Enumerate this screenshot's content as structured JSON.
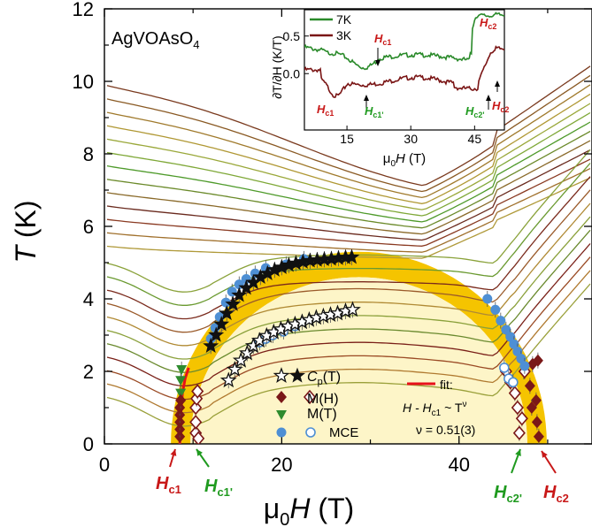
{
  "chart_data": {
    "type": "scatter",
    "title": "",
    "compound": {
      "base": "AgVOAsO",
      "sub": "4"
    },
    "xlabel": {
      "prefix": "μ",
      "sub": "0",
      "var": "H",
      "unit": " (T)"
    },
    "ylabel": {
      "var": "T",
      "unit": " (K)"
    },
    "xlim": [
      0,
      55
    ],
    "ylim": [
      0,
      12
    ],
    "xticks": [
      "0",
      "20",
      "40"
    ],
    "yticks": [
      "0",
      "2",
      "4",
      "6",
      "8",
      "10",
      "12"
    ],
    "legend": {
      "cp": {
        "label": "C",
        "sub": "p",
        "arg": "(T)"
      },
      "mh": {
        "label": "M(H)"
      },
      "mt": {
        "label": "M(T)"
      },
      "mce": {
        "label": "MCE"
      },
      "fit": {
        "label": "fit:",
        "eq_a": "H - H",
        "eq_sub": "c1",
        "eq_b": " ~ T",
        "eq_sup": "ν",
        "nu": "ν = 0.51(3)"
      }
    },
    "field_labels": {
      "hc1": {
        "base": "H",
        "sub": "c1"
      },
      "hc1p": {
        "base": "H",
        "sub": "c1'"
      },
      "hc2p": {
        "base": "H",
        "sub": "c2'"
      },
      "hc2": {
        "base": "H",
        "sub": "c2"
      }
    },
    "colors": {
      "dome": "#f5c400",
      "inner": "#fdf5c8",
      "fit": "#e8101a",
      "cp": "#111111",
      "mh": "#7a1818",
      "mt": "#2e8b2e",
      "mce": "#4e8fd4",
      "green": "#1f9a1f",
      "red": "#c81818"
    },
    "series": [
      {
        "name": "Cp(T) filled",
        "marker": "star-filled",
        "x": [
          12.0,
          12.6,
          13.2,
          13.8,
          14.5,
          15.2,
          16.0,
          16.8,
          17.6,
          18.4,
          19.2,
          20.0,
          20.8,
          21.6,
          22.4,
          23.2,
          24.0,
          24.8,
          25.6,
          26.4,
          27.2,
          27.9
        ],
        "y": [
          2.7,
          3.0,
          3.3,
          3.6,
          3.85,
          4.1,
          4.3,
          4.45,
          4.6,
          4.7,
          4.8,
          4.87,
          4.93,
          4.98,
          5.02,
          5.05,
          5.07,
          5.09,
          5.1,
          5.12,
          5.14,
          5.15
        ]
      },
      {
        "name": "Cp(T) open",
        "marker": "star-open",
        "x": [
          14.0,
          14.7,
          15.4,
          16.1,
          16.8,
          17.5,
          18.3,
          19.1,
          19.9,
          20.7,
          21.5,
          22.3,
          23.1,
          23.9,
          24.7,
          25.5,
          26.3,
          27.2,
          28.0
        ],
        "y": [
          1.75,
          2.05,
          2.3,
          2.5,
          2.7,
          2.85,
          2.98,
          3.08,
          3.16,
          3.24,
          3.3,
          3.36,
          3.42,
          3.48,
          3.52,
          3.56,
          3.6,
          3.66,
          3.7
        ]
      },
      {
        "name": "M(H) filled",
        "marker": "diamond-filled",
        "x": [
          8.5,
          8.5,
          8.5,
          8.5,
          8.5,
          8.6,
          47.3,
          48.0,
          48.7,
          48.2,
          48.8,
          49.0,
          48.3,
          48.9
        ],
        "y": [
          0.2,
          0.4,
          0.6,
          0.8,
          1.0,
          1.2,
          2.0,
          1.6,
          1.2,
          1.0,
          0.6,
          0.2,
          2.2,
          2.3
        ]
      },
      {
        "name": "M(H) open",
        "marker": "diamond-open",
        "x": [
          10.3,
          10.3,
          10.3,
          10.4,
          10.5,
          10.6,
          45.3,
          45.8,
          46.3,
          46.6,
          47.1,
          46.8,
          47.4
        ],
        "y": [
          0.3,
          0.6,
          1.0,
          1.25,
          1.45,
          0.15,
          2.0,
          1.7,
          1.4,
          1.0,
          0.7,
          0.3,
          2.0
        ]
      },
      {
        "name": "M(T)",
        "marker": "triangle-down",
        "x": [
          8.6,
          8.6,
          8.7
        ],
        "y": [
          1.4,
          1.75,
          2.05
        ]
      },
      {
        "name": "MCE filled",
        "marker": "circle-filled",
        "x": [
          12.0,
          12.5,
          13.0,
          13.7,
          14.4,
          15.2,
          16.0,
          17.0,
          18.2,
          20.5,
          22.5,
          43.2,
          44.1,
          44.7,
          45.3,
          45.8,
          46.2,
          46.6,
          47.0,
          47.4
        ],
        "y": [
          2.9,
          3.2,
          3.5,
          3.9,
          4.2,
          4.4,
          4.55,
          4.7,
          4.85,
          4.95,
          5.1,
          4.0,
          3.7,
          3.4,
          3.15,
          2.95,
          2.75,
          2.55,
          2.35,
          2.15
        ]
      },
      {
        "name": "MCE open",
        "marker": "circle-open",
        "x": [
          17.5,
          18.2,
          19.0,
          20.2,
          21.5,
          45.1,
          45.6,
          46.1
        ],
        "y": [
          2.8,
          2.9,
          3.0,
          3.1,
          3.25,
          2.1,
          1.8,
          1.7
        ]
      }
    ],
    "fit_curve": {
      "x": [
        8.5,
        8.6,
        8.8,
        9.1,
        9.5
      ],
      "y": [
        0.0,
        0.8,
        1.4,
        1.8,
        2.1
      ]
    },
    "inset": {
      "xlabel": {
        "prefix": "μ",
        "sub": "0",
        "var": "H",
        "unit": " (T)"
      },
      "ylabel": "∂T/∂H (K/T)",
      "xlim": [
        5,
        52
      ],
      "ylim": [
        -0.75,
        0.85
      ],
      "xticks": [
        "15",
        "30",
        "45"
      ],
      "yticks": [
        "0.0",
        "0.5"
      ],
      "series": [
        {
          "name": "7K",
          "color": "#2a8a2a"
        },
        {
          "name": "3K",
          "color": "#7a1515"
        }
      ],
      "labels": {
        "hc1": {
          "base": "H",
          "sub": "c1"
        },
        "hc1p": {
          "base": "H",
          "sub": "c1'"
        },
        "hc2p": {
          "base": "H",
          "sub": "c2'"
        },
        "hc2": {
          "base": "H",
          "sub": "c2"
        }
      }
    }
  }
}
